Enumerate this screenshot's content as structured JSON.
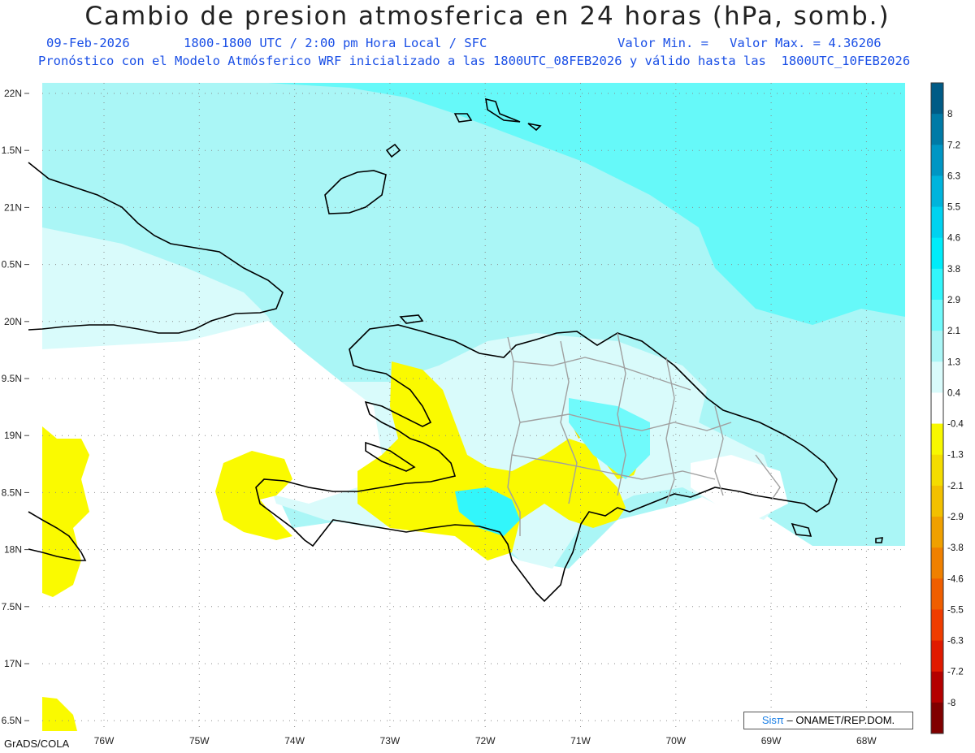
{
  "header": {
    "title": "Cambio de presion atmosferica en 24 horas (hPa, somb.)",
    "date": "09-Feb-2026",
    "time_info": "1800-1800 UTC / 2:00 pm Hora Local / SFC",
    "min_label": "Valor Min. =",
    "max_label": "Valor Max. = 4.36206",
    "forecast_line": "Pronóstico con el Modelo Atmósferico WRF inicializado a las 1800UTC_08FEB2026 y válido hasta las  1800UTC_10FEB2026"
  },
  "map": {
    "lat_labels": [
      "22N",
      "1.5N",
      "21N",
      "0.5N",
      "20N",
      "9.5N",
      "19N",
      "8.5N",
      "18N",
      "7.5N",
      "17N",
      "6.5N"
    ],
    "lon_labels": [
      "76W",
      "75W",
      "74W",
      "73W",
      "72W",
      "71W",
      "70W",
      "69W",
      "68W"
    ],
    "lon_values": [
      -76,
      -75,
      -74,
      -73,
      -72,
      -71,
      -70,
      -69,
      -68
    ],
    "lat_values": [
      22,
      21.5,
      21,
      20.5,
      20,
      19.5,
      19,
      18.5,
      18,
      17.5,
      17,
      16.5
    ],
    "ocean_fill_color": "#aaf6f6",
    "north_fill_color": "#66f9f9",
    "negative_fill_color": "#fafa00",
    "coast_color": "#000000",
    "border_color": "#a0a0a0"
  },
  "colorbar": {
    "labels": [
      "8",
      "7.2",
      "6.3",
      "5.5",
      "4.6",
      "3.8",
      "2.9",
      "2.1",
      "1.3",
      "0.4",
      "-0.4",
      "-1.3",
      "-2.1",
      "-2.9",
      "-3.8",
      "-4.6",
      "-5.5",
      "-6.3",
      "-7.2",
      "-8"
    ],
    "colors": [
      "#005b86",
      "#007aa6",
      "#0096c4",
      "#00b4dc",
      "#00d2f0",
      "#00ecfa",
      "#32f6fb",
      "#70fafb",
      "#aaf6f6",
      "#d9fbfb",
      "#ffffff",
      "#f8f800",
      "#f4dc00",
      "#f2c000",
      "#f0a000",
      "#f08000",
      "#f05e00",
      "#f03c00",
      "#e01a00",
      "#b40000",
      "#800000"
    ]
  },
  "credits": {
    "sis": "Sisπ",
    "rest": "– ONAMET/REP.DOM.",
    "grads": "GrADS/COLA"
  }
}
